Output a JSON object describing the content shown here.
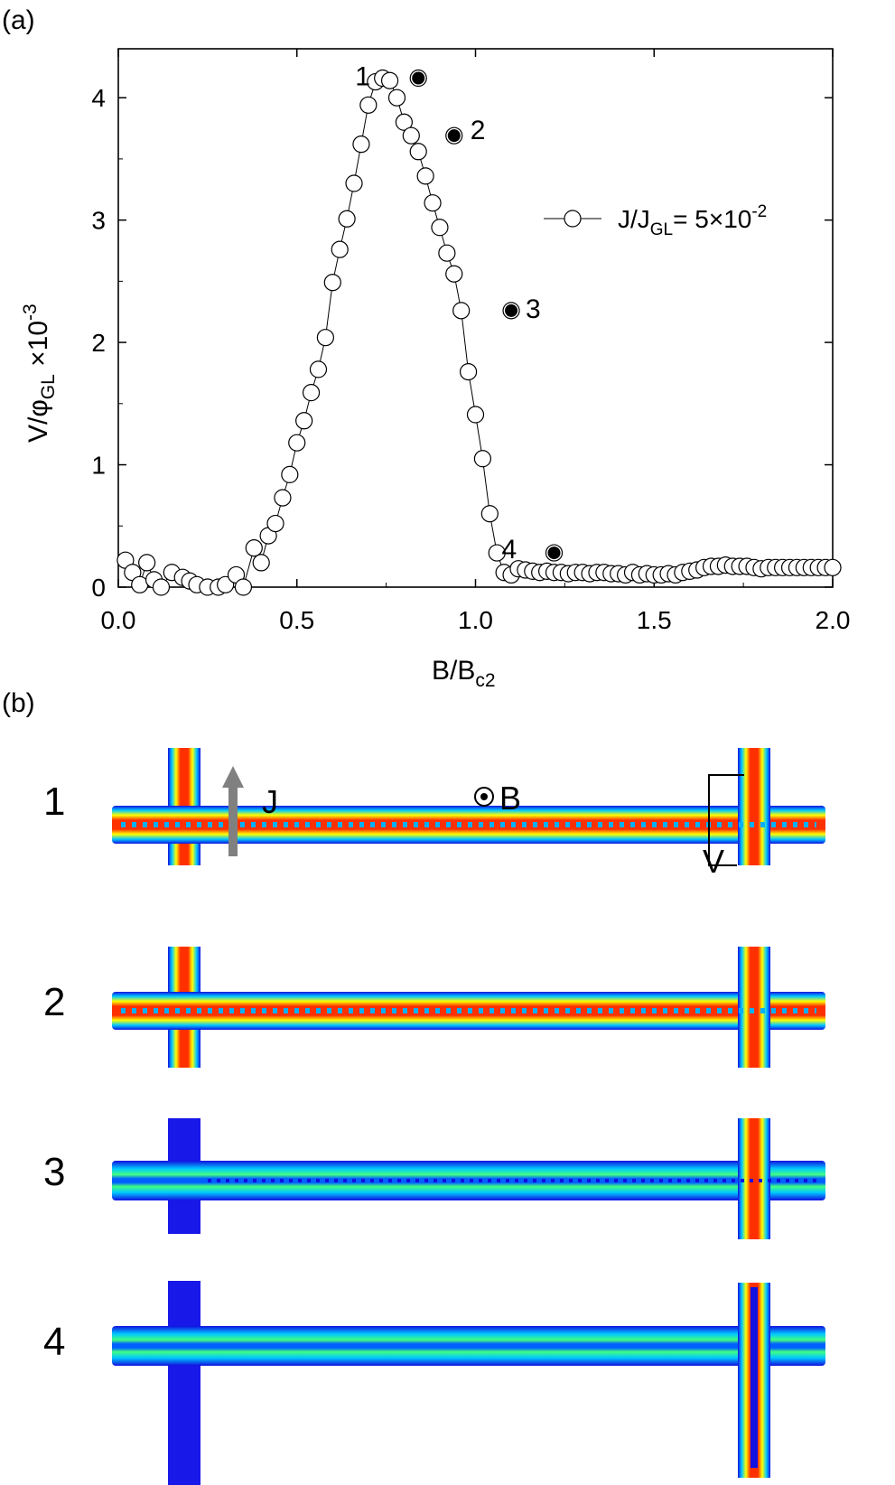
{
  "panel_a": {
    "label": "(a)"
  },
  "panel_b": {
    "label": "(b)",
    "row_labels": [
      "1",
      "2",
      "3",
      "4"
    ],
    "current_label": "J",
    "field_label": "B",
    "voltage_label": "V"
  },
  "chart_data": {
    "type": "scatter",
    "xlim": [
      0,
      2.0
    ],
    "ylim": [
      0,
      4.4
    ],
    "x_ticks": [
      "0.0",
      "0.5",
      "1.0",
      "1.5",
      "2.0"
    ],
    "y_ticks": [
      "0",
      "1",
      "2",
      "3",
      "4"
    ],
    "xlabel": {
      "main": "B/B",
      "sub": "c2"
    },
    "ylabel": {
      "a": "V/φ",
      "sub": "GL",
      "b": " ×10",
      "sup": "-3"
    },
    "legend": {
      "position": "top-right",
      "text": "J/J",
      "sub": "GL",
      "rest": "= 5×10",
      "sup": "-2"
    },
    "series": [
      {
        "x": [
          0.02,
          0.04,
          0.06,
          0.08,
          0.1,
          0.12,
          0.15,
          0.18,
          0.2,
          0.22,
          0.25,
          0.28,
          0.3,
          0.33,
          0.35,
          0.38,
          0.4,
          0.42,
          0.44,
          0.46,
          0.48,
          0.5,
          0.52,
          0.54,
          0.56,
          0.58,
          0.6,
          0.62,
          0.64,
          0.66,
          0.68,
          0.7,
          0.72,
          0.74,
          0.76,
          0.78,
          0.8,
          0.82,
          0.84,
          0.86,
          0.88,
          0.9,
          0.92,
          0.94,
          0.96,
          0.98,
          1.0,
          1.02,
          1.04,
          1.06,
          1.08,
          1.1,
          1.12,
          1.14,
          1.16,
          1.18,
          1.2,
          1.22,
          1.24,
          1.26,
          1.28,
          1.3,
          1.32,
          1.34,
          1.36,
          1.38,
          1.4,
          1.42,
          1.44,
          1.46,
          1.48,
          1.5,
          1.52,
          1.54,
          1.56,
          1.58,
          1.6,
          1.62,
          1.64,
          1.66,
          1.68,
          1.7,
          1.72,
          1.74,
          1.76,
          1.78,
          1.8,
          1.82,
          1.84,
          1.86,
          1.88,
          1.9,
          1.92,
          1.94,
          1.96,
          1.98,
          2.0
        ],
        "y": [
          0.22,
          0.12,
          0.02,
          0.2,
          0.06,
          0.0,
          0.12,
          0.08,
          0.05,
          0.02,
          0.0,
          0.0,
          0.02,
          0.1,
          0.0,
          0.32,
          0.2,
          0.42,
          0.52,
          0.73,
          0.92,
          1.18,
          1.36,
          1.59,
          1.78,
          2.04,
          2.49,
          2.76,
          3.01,
          3.3,
          3.62,
          3.94,
          4.13,
          4.16,
          4.14,
          4.0,
          3.8,
          3.69,
          3.56,
          3.36,
          3.14,
          2.94,
          2.73,
          2.56,
          2.26,
          1.76,
          1.41,
          1.05,
          0.6,
          0.28,
          0.12,
          0.1,
          0.15,
          0.14,
          0.13,
          0.12,
          0.13,
          0.12,
          0.12,
          0.11,
          0.12,
          0.12,
          0.11,
          0.12,
          0.12,
          0.11,
          0.11,
          0.1,
          0.12,
          0.1,
          0.11,
          0.1,
          0.1,
          0.11,
          0.1,
          0.12,
          0.13,
          0.14,
          0.16,
          0.17,
          0.17,
          0.18,
          0.17,
          0.17,
          0.17,
          0.16,
          0.15,
          0.16,
          0.16,
          0.16,
          0.16,
          0.16,
          0.16,
          0.16,
          0.16,
          0.16,
          0.16
        ]
      }
    ],
    "highlighted": [
      {
        "label": "1",
        "x": 0.84,
        "y": 4.16
      },
      {
        "label": "2",
        "x": 0.94,
        "y": 3.69
      },
      {
        "label": "3",
        "x": 1.1,
        "y": 2.26
      },
      {
        "label": "4",
        "x": 1.22,
        "y": 0.28
      }
    ]
  }
}
